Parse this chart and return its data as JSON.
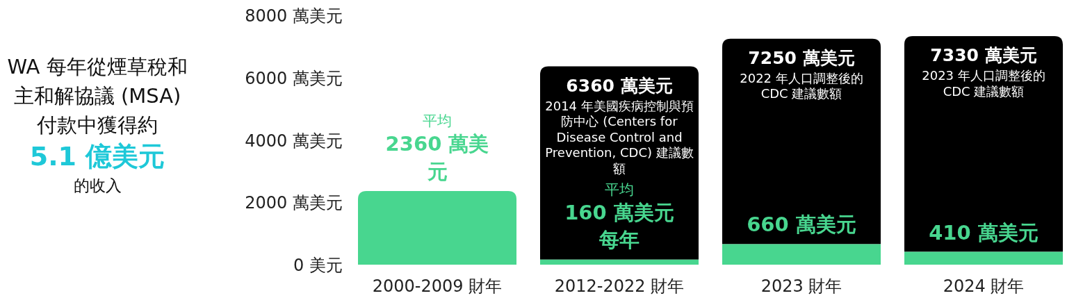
{
  "chart_data": {
    "type": "bar",
    "title": "WA 每年從煙草稅和主和解協議 (MSA) 付款中獲得約",
    "subtitle": "5.1 億美元",
    "annotations": [
      "的收入",
      {
        "text": "2014 年美國疾病控制與預防中心 (Centers for Disease Control and Prevention, CDC) 建議數額",
        "x": "2012-2022 財年",
        "y": 6360
      },
      {
        "text": "2022 年人口調整後的 CDC 建議數額",
        "x": "2023 財年",
        "y": 7250
      },
      {
        "text": "2023 年人口調整後的 CDC 建議數額",
        "x": "2024 財年",
        "y": 7330
      }
    ],
    "categories": [
      "2000-2009 財年",
      "2012-2022 財年",
      "2023 財年",
      "2024 財年"
    ],
    "stacked": true,
    "series": [
      {
        "color": "#48d68f",
        "values": [
          2360,
          160,
          660,
          410
        ],
        "value_labels": [
          "平均2360 萬美元",
          "平均160 萬美元每年",
          "660 萬美元",
          "410 萬美元"
        ]
      },
      {
        "color": "#000000",
        "values": [
          null,
          6200,
          6590,
          6920
        ]
      }
    ],
    "totals": [
      null,
      "6360 萬美元",
      "7250 萬美元",
      "7330 萬美元"
    ],
    "ylim": [
      0,
      8000
    ],
    "yticks": [
      {
        "value": 0,
        "label": "0 美元"
      },
      {
        "value": 2000,
        "label": "2000 萬美元"
      },
      {
        "value": 4000,
        "label": "4000 萬美元"
      },
      {
        "value": 6000,
        "label": "6000 萬美元"
      },
      {
        "value": 8000,
        "label": "8000 萬美元"
      }
    ],
    "grid": false
  }
}
